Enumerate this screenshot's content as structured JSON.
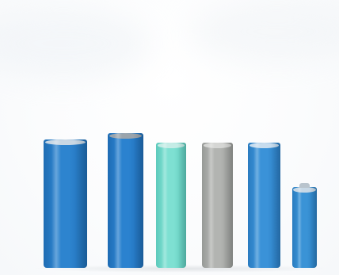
{
  "scene": {
    "background": "#ffffff",
    "subject": "cylindrical-battery-cells",
    "cells": [
      {
        "name": "large-blue-cell",
        "body_color": "#2d84cf",
        "edge_color": "#1f6db3",
        "cap_color": "#c8d7e4"
      },
      {
        "name": "tall-blue-cell",
        "body_color": "#2b82cf",
        "edge_color": "#1e6cb4",
        "cap_color": "#9aa4ac"
      },
      {
        "name": "mint-cell",
        "body_color": "#7ee0d2",
        "edge_color": "#5cc9bb",
        "cap_color": "#c5ece6"
      },
      {
        "name": "gray-cell",
        "body_color": "#b2b4b1",
        "edge_color": "#979a97",
        "cap_color": "#d5d6d4"
      },
      {
        "name": "medium-blue-cell",
        "body_color": "#3a92d8",
        "edge_color": "#2a7bc0",
        "cap_color": "#c7dcee"
      },
      {
        "name": "small-blue-cell",
        "body_color": "#3a93d6",
        "edge_color": "#2a7cbf",
        "cap_color": "#c7d8e6"
      }
    ]
  }
}
